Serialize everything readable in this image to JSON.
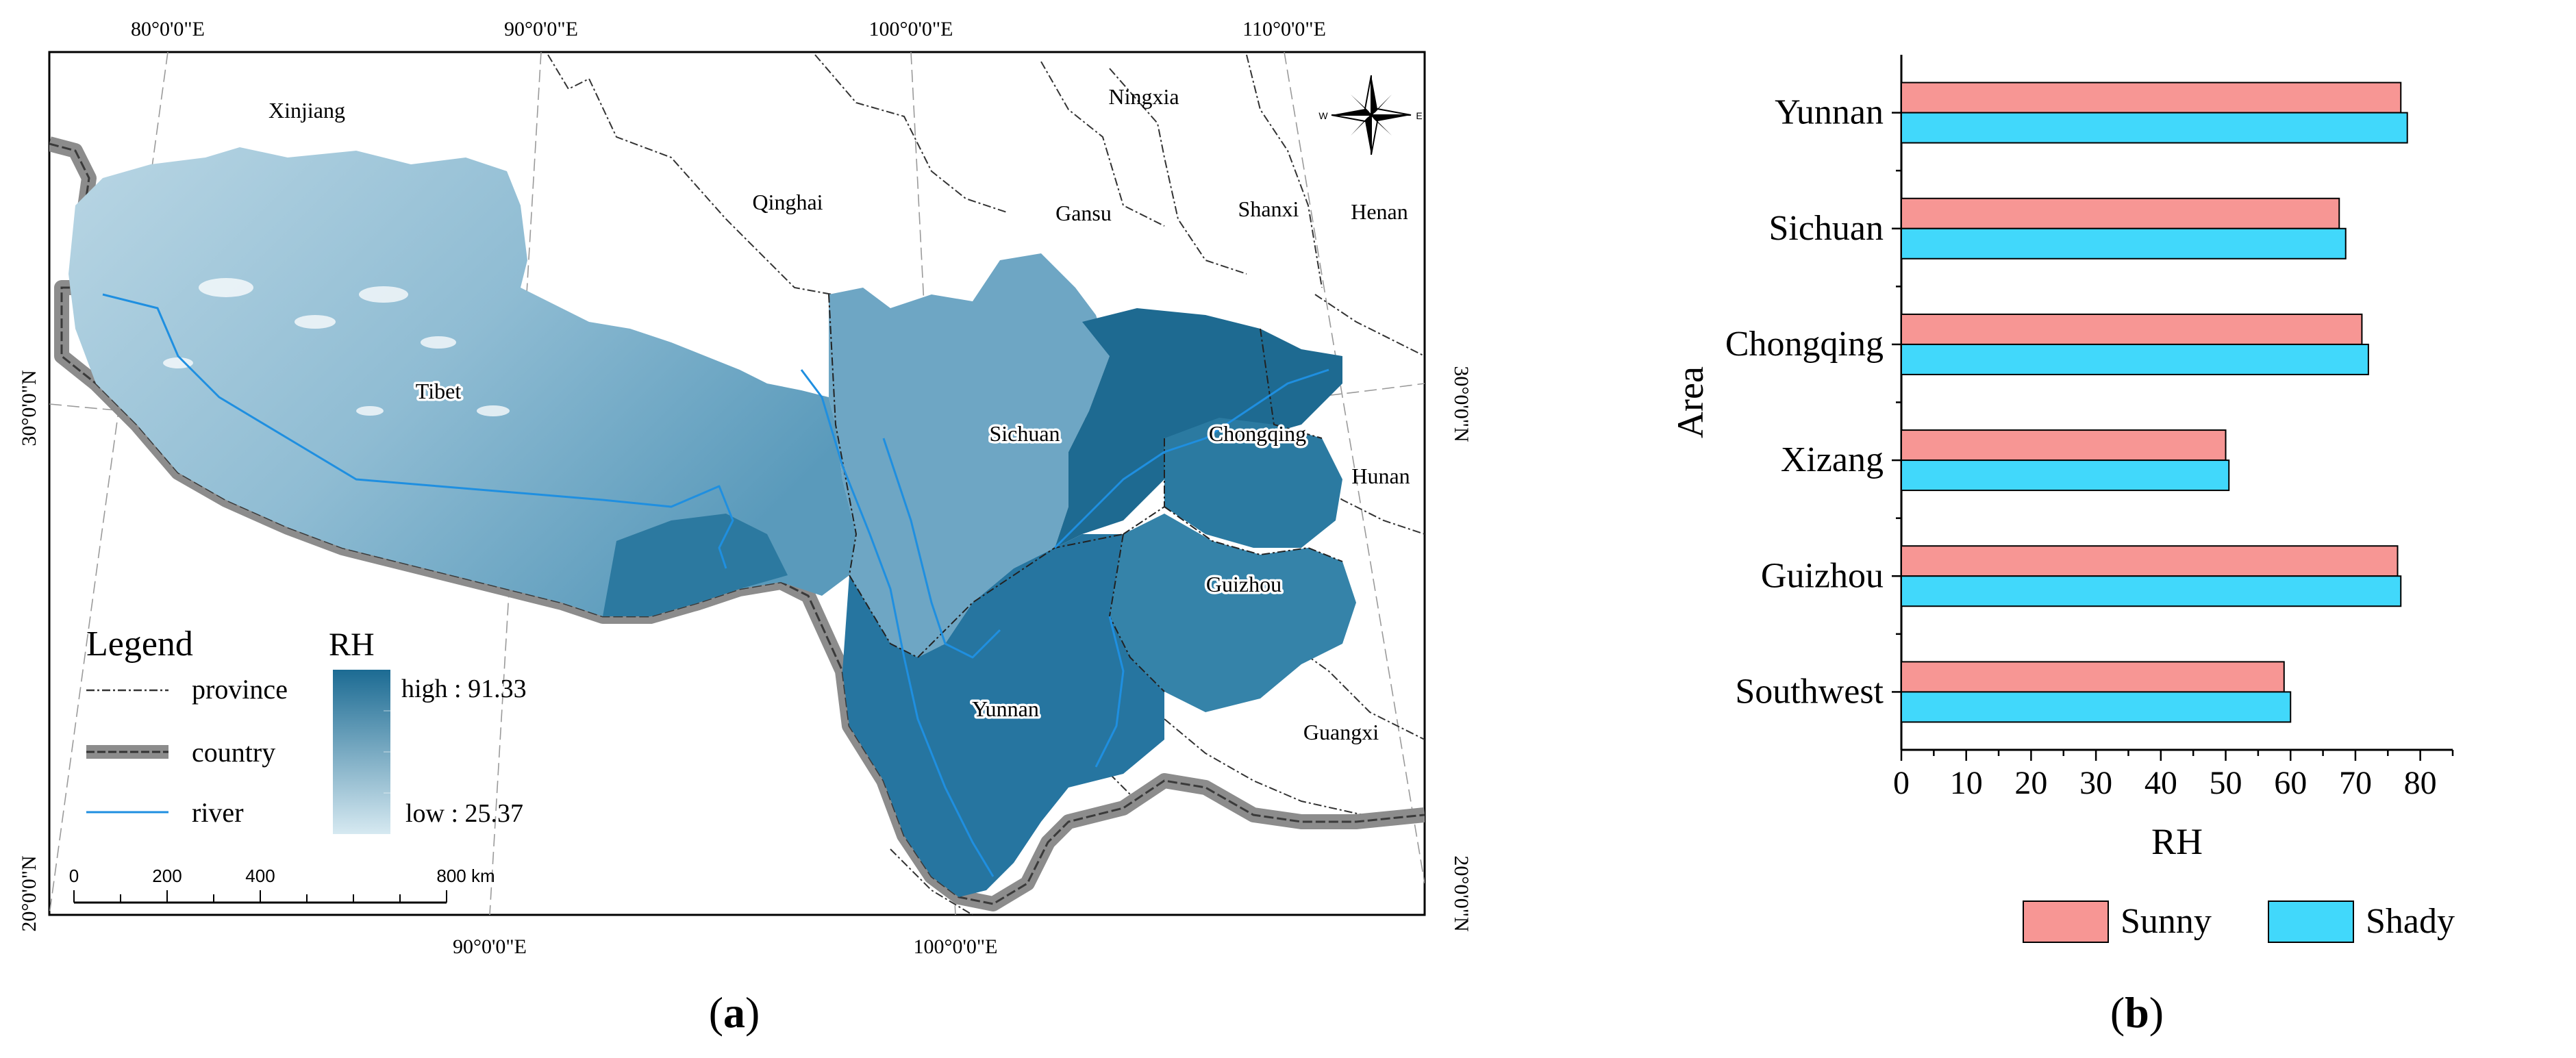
{
  "map": {
    "top_longitudes": [
      "80°0'0\"E",
      "90°0'0\"E",
      "100°0'0\"E",
      "110°0'0\"E"
    ],
    "bottom_longitudes": [
      "90°0'0\"E",
      "100°0'0\"E"
    ],
    "left_latitudes": [
      "30°0'0\"N",
      "20°0'0\"N"
    ],
    "right_latitudes": [
      "30°0'0\"N",
      "20°0'0\"N"
    ],
    "region_labels": {
      "xinjiang": "Xinjiang",
      "qinghai": "Qinghai",
      "ningxia": "Ningxia",
      "gansu": "Gansu",
      "shanxi": "Shanxi",
      "henan": "Henan",
      "tibet": "Tibet",
      "sichuan": "Sichuan",
      "chongqing": "Chongqing",
      "hunan": "Hunan",
      "guizhou": "Guizhou",
      "yunnan": "Yunnan",
      "guangxi": "Guangxi"
    },
    "legend": {
      "title": "Legend",
      "items": [
        "province",
        "country",
        "river"
      ]
    },
    "rh_legend": {
      "title": "RH",
      "high": "high : 91.33",
      "low": "low : 25.37"
    },
    "scale_bar": [
      "0",
      "200",
      "400",
      "800 km"
    ],
    "compass": {
      "west": "W",
      "east": "E"
    },
    "colors": {
      "rh_low": "#d6e9f1",
      "rh_high": "#1c6b93",
      "river": "#1f8fe0"
    }
  },
  "chart_data": {
    "type": "bar",
    "orientation": "horizontal",
    "categories": [
      "Yunnan",
      "Sichuan",
      "Chongqing",
      "Xizang",
      "Guizhou",
      "Southwest"
    ],
    "series": [
      {
        "name": "Sunny",
        "values": [
          77,
          67.5,
          71,
          50,
          76.5,
          59
        ],
        "color": "#f79694"
      },
      {
        "name": "Shady",
        "values": [
          78,
          68.5,
          72,
          50.5,
          77,
          60
        ],
        "color": "#41d8fb"
      }
    ],
    "xlabel": "RH",
    "ylabel": "Area",
    "xlim": [
      0,
      85
    ],
    "xticks": [
      0,
      10,
      20,
      30,
      40,
      50,
      60,
      70,
      80
    ],
    "legend_position": "bottom",
    "grid": false
  },
  "captions": {
    "a": "a",
    "b": "b"
  }
}
